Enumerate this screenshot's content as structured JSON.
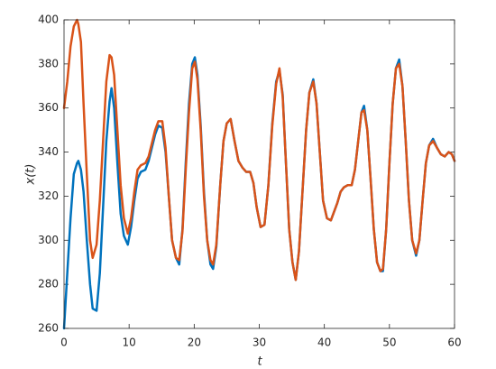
{
  "chart_data": {
    "type": "line",
    "x_label": "t",
    "y_label": "x(t)",
    "x": [
      0,
      0.5,
      1,
      1.5,
      2,
      2.2,
      2.6,
      3,
      3.5,
      4,
      4.4,
      5,
      5.5,
      6,
      6.5,
      7,
      7.3,
      7.7,
      8.2,
      8.7,
      9.2,
      9.8,
      10.3,
      10.8,
      11.3,
      11.8,
      12.5,
      13,
      13.5,
      14,
      14.5,
      15.1,
      15.6,
      16.1,
      16.6,
      17.2,
      17.7,
      18.2,
      18.7,
      19.2,
      19.7,
      20.1,
      20.5,
      21,
      21.5,
      22,
      22.5,
      22.9,
      23.4,
      24,
      24.5,
      25,
      25.6,
      26.2,
      26.8,
      27.4,
      28,
      28.6,
      29.1,
      29.6,
      30.2,
      30.8,
      31.4,
      32,
      32.6,
      33.1,
      33.6,
      34.1,
      34.6,
      35.1,
      35.6,
      36.1,
      36.7,
      37.2,
      37.7,
      38.3,
      38.8,
      39.3,
      39.8,
      40.4,
      41,
      41.5,
      42,
      42.5,
      43,
      43.6,
      44.2,
      44.7,
      45.2,
      45.7,
      46.1,
      46.6,
      47.1,
      47.6,
      48.1,
      48.6,
      49,
      49.5,
      50,
      50.5,
      51,
      51.5,
      52,
      52.5,
      53,
      53.5,
      54.1,
      54.6,
      55.1,
      55.6,
      56.1,
      56.7,
      57.3,
      57.9,
      58.5,
      59.1,
      59.6,
      60
    ],
    "series": [
      {
        "color": "#0072BD",
        "values": [
          260,
          285,
          310,
          330,
          335,
          336,
          332,
          322,
          300,
          280,
          269,
          268,
          285,
          315,
          345,
          363,
          369,
          360,
          335,
          312,
          302,
          298,
          306,
          318,
          328,
          331,
          332,
          336,
          342,
          348,
          352,
          351,
          340,
          320,
          300,
          292,
          289,
          305,
          335,
          362,
          380,
          383,
          375,
          352,
          322,
          300,
          289,
          287,
          297,
          325,
          345,
          353,
          355,
          345,
          336,
          333,
          331,
          331,
          326,
          315,
          306,
          307,
          325,
          353,
          372,
          377,
          366,
          335,
          305,
          290,
          282,
          295,
          325,
          350,
          367,
          373,
          362,
          340,
          318,
          310,
          309,
          313,
          317,
          322,
          324,
          325,
          325,
          332,
          345,
          358,
          361,
          350,
          328,
          305,
          290,
          286,
          286,
          305,
          335,
          362,
          378,
          382,
          370,
          345,
          318,
          300,
          293,
          300,
          318,
          335,
          343,
          346,
          342,
          339,
          338,
          340,
          339,
          336
        ]
      },
      {
        "color": "#D95319",
        "values": [
          360,
          372,
          388,
          397,
          400,
          398,
          390,
          362,
          330,
          300,
          292,
          298,
          318,
          345,
          372,
          384,
          383,
          375,
          350,
          325,
          310,
          303,
          310,
          322,
          332,
          334,
          335,
          338,
          344,
          350,
          354,
          354,
          342,
          320,
          300,
          292,
          291,
          304,
          332,
          358,
          378,
          381,
          373,
          350,
          320,
          300,
          291,
          289,
          298,
          325,
          345,
          353,
          355,
          345,
          336,
          333,
          331,
          331,
          326,
          315,
          306,
          307,
          325,
          352,
          371,
          378,
          365,
          335,
          305,
          290,
          282,
          295,
          325,
          350,
          367,
          372,
          362,
          340,
          318,
          310,
          309,
          313,
          317,
          322,
          324,
          325,
          325,
          332,
          345,
          358,
          359,
          350,
          328,
          305,
          290,
          286,
          287,
          305,
          335,
          362,
          378,
          380,
          370,
          345,
          318,
          300,
          294,
          300,
          318,
          335,
          343,
          345,
          342,
          339,
          338,
          340,
          339,
          336
        ]
      }
    ],
    "xlim": [
      0,
      60
    ],
    "xticks": [
      0,
      10,
      20,
      30,
      40,
      50,
      60
    ],
    "ylim": [
      260,
      400
    ],
    "yticks": [
      260,
      280,
      300,
      320,
      340,
      360,
      380,
      400
    ],
    "grid": false,
    "box": true
  }
}
